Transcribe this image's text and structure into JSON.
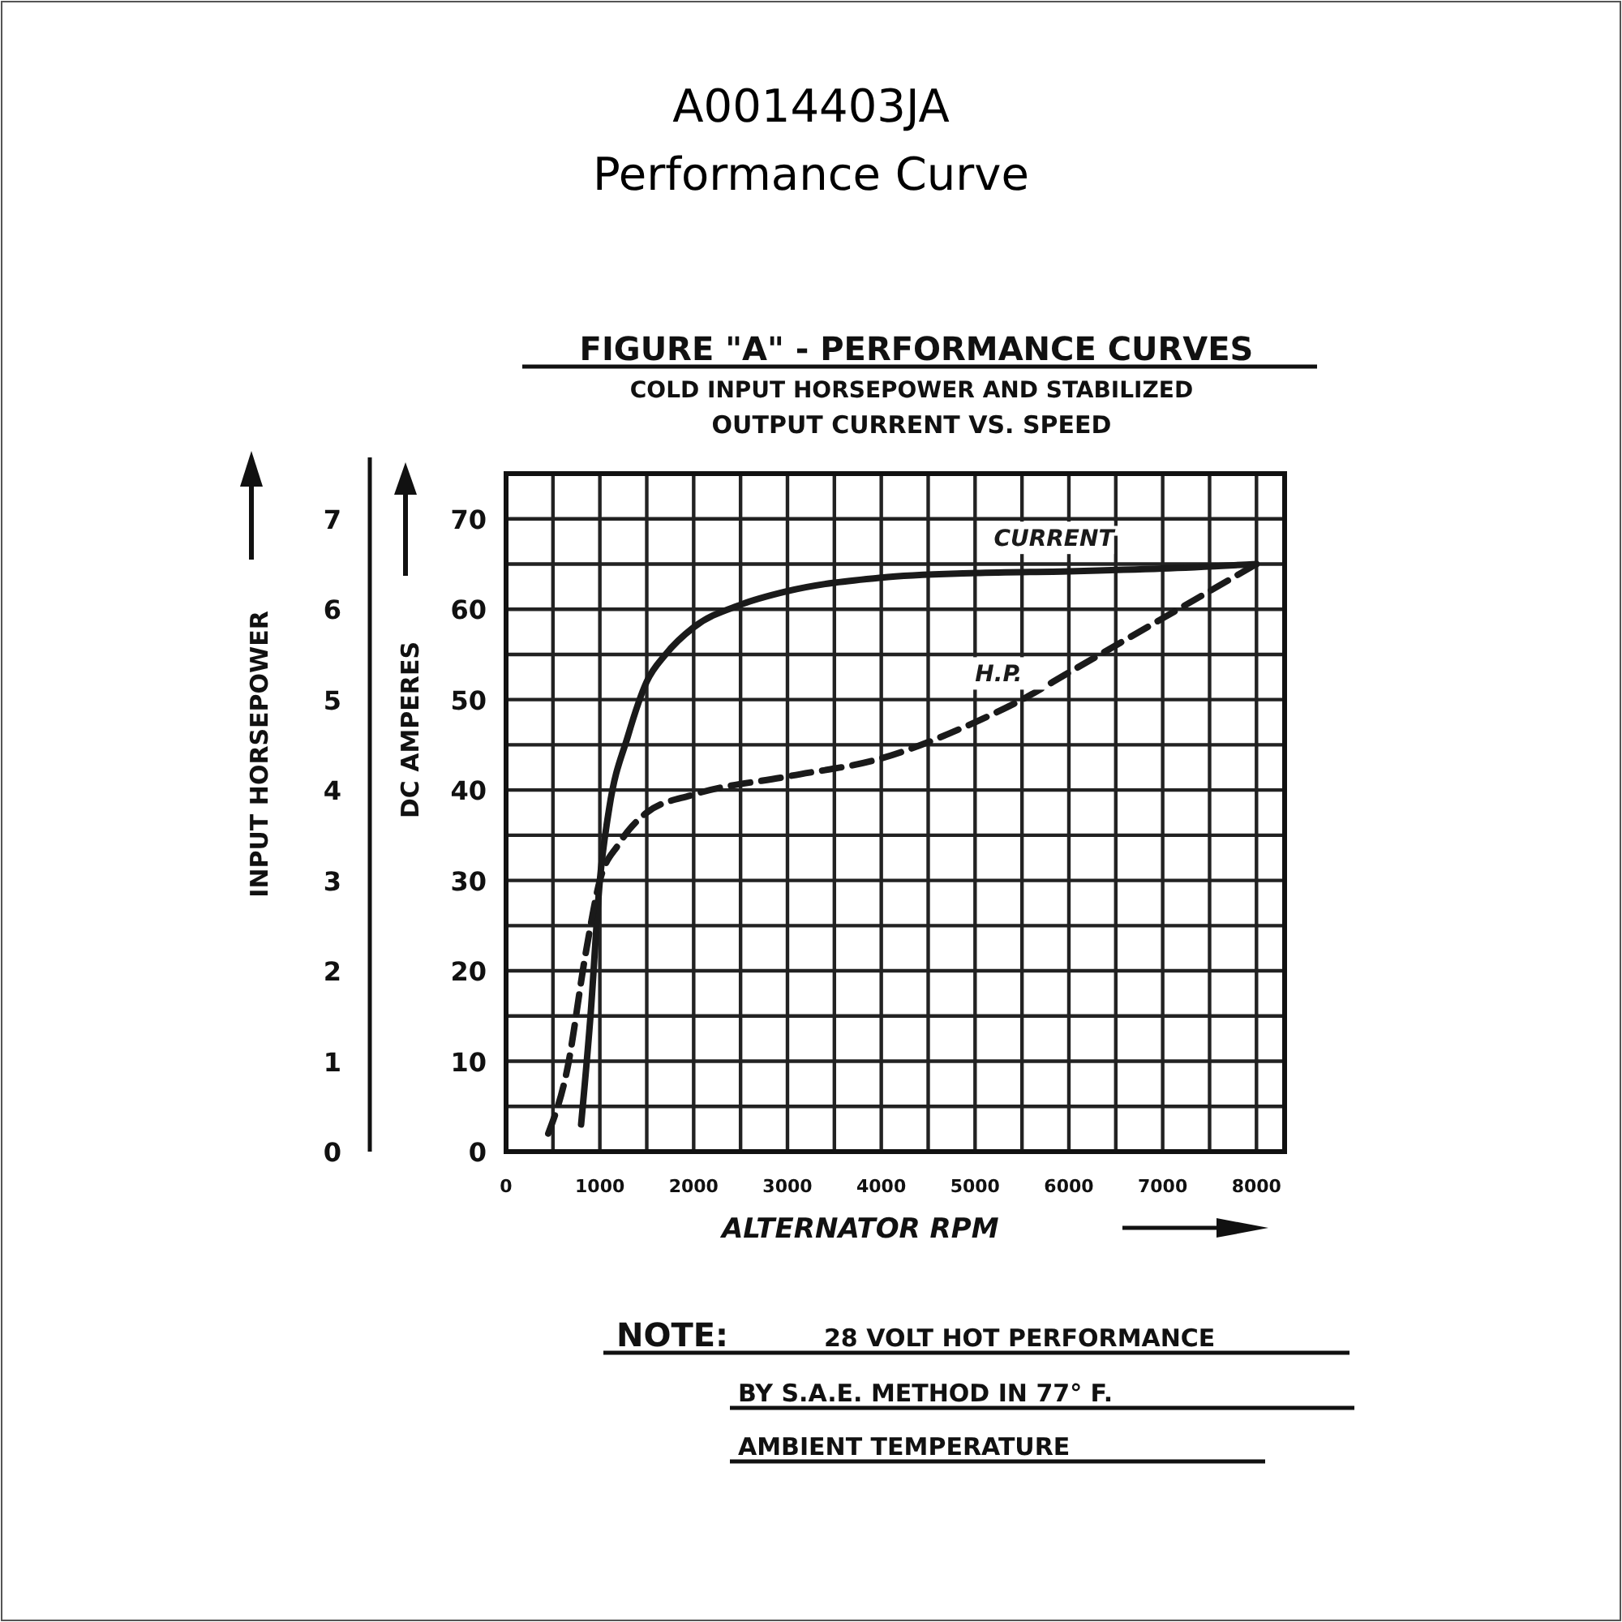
{
  "chart_data": {
    "type": "line",
    "title": "A0014403JA",
    "subtitle": "Performance Curve",
    "annotations": [
      "FIGURE \"A\" - PERFORMANCE CURVES",
      "COLD INPUT HORSEPOWER AND STABILIZED",
      "OUTPUT CURRENT VS. SPEED",
      "NOTE:",
      "28 VOLT HOT PERFORMANCE",
      "BY S.A.E. METHOD IN 77° F.",
      "AMBIENT TEMPERATURE"
    ],
    "xlabel": "ALTERNATOR RPM",
    "ylabel": "DC AMPERES",
    "y2label": "INPUT HORSEPOWER",
    "xlim": [
      0,
      8300
    ],
    "xticks": [
      0,
      1000,
      2000,
      3000,
      4000,
      5000,
      6000,
      7000,
      8000
    ],
    "ylim": [
      0,
      75
    ],
    "yticks": [
      0,
      10,
      20,
      30,
      40,
      50,
      60,
      70
    ],
    "y2lim": [
      0,
      7.5
    ],
    "y2ticks": [
      0,
      1,
      2,
      3,
      4,
      5,
      6,
      7
    ],
    "grid": true,
    "series": [
      {
        "name": "CURRENT",
        "color": "#1a1a1a",
        "line_style": "solid",
        "x": [
          800,
          900,
          1000,
          1100,
          1300,
          1500,
          1700,
          2000,
          2500,
          3000,
          4000,
          5000,
          6000,
          7000,
          8000
        ],
        "values": [
          3,
          15,
          30,
          38,
          46,
          52,
          55,
          58,
          60.5,
          62,
          63.5,
          64,
          64.2,
          64.5,
          65
        ]
      },
      {
        "name": "H.P.",
        "color": "#1a1a1a",
        "line_style": "dashed",
        "axis": "y2",
        "x": [
          450,
          650,
          850,
          1000,
          1200,
          1500,
          2000,
          3000,
          4000,
          5000,
          5500,
          6000,
          7000,
          8000
        ],
        "values": [
          0.2,
          0.9,
          2.2,
          3.0,
          3.4,
          3.75,
          3.95,
          4.15,
          4.35,
          4.75,
          5.0,
          5.3,
          5.9,
          6.5
        ]
      }
    ]
  }
}
